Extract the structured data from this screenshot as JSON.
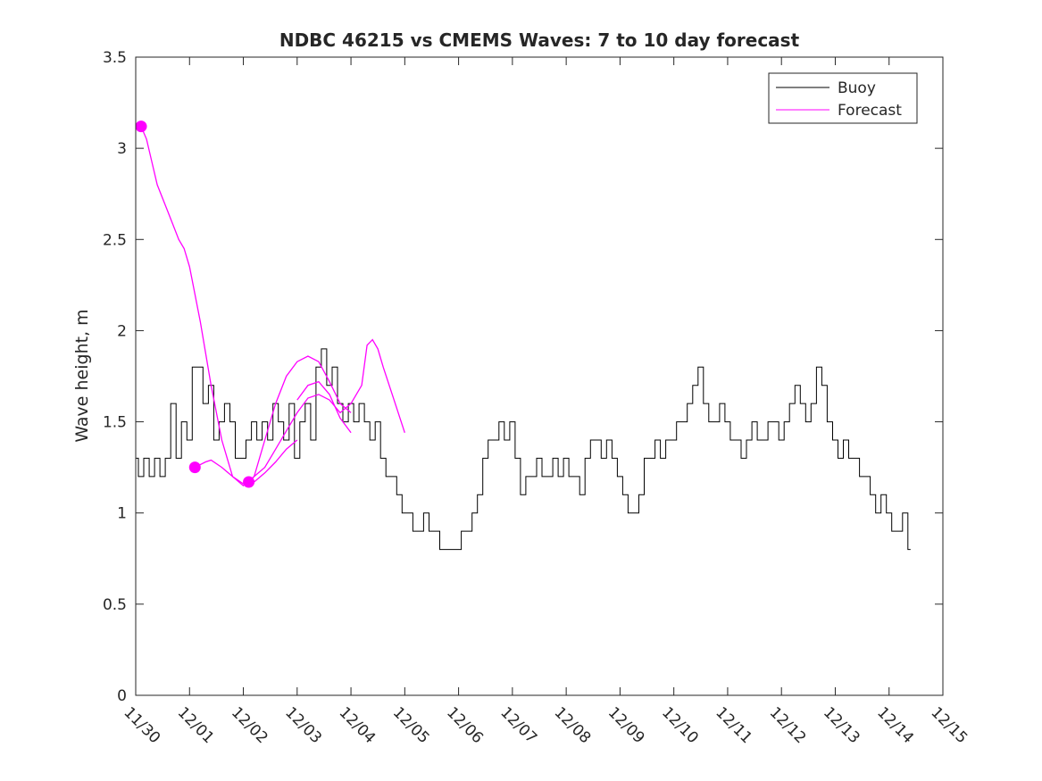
{
  "chart_data": {
    "type": "line",
    "title": "NDBC 46215 vs CMEMS Waves: 7 to 10 day forecast",
    "xlabel": "",
    "ylabel": "Wave height, m",
    "xlim": [
      0,
      15
    ],
    "ylim": [
      0,
      3.5
    ],
    "grid": false,
    "legend_position": "top-right",
    "x_ticks": [
      {
        "value": 0,
        "label": "11/30"
      },
      {
        "value": 1,
        "label": "12/01"
      },
      {
        "value": 2,
        "label": "12/02"
      },
      {
        "value": 3,
        "label": "12/03"
      },
      {
        "value": 4,
        "label": "12/04"
      },
      {
        "value": 5,
        "label": "12/05"
      },
      {
        "value": 6,
        "label": "12/06"
      },
      {
        "value": 7,
        "label": "12/07"
      },
      {
        "value": 8,
        "label": "12/08"
      },
      {
        "value": 9,
        "label": "12/09"
      },
      {
        "value": 10,
        "label": "12/10"
      },
      {
        "value": 11,
        "label": "12/11"
      },
      {
        "value": 12,
        "label": "12/12"
      },
      {
        "value": 13,
        "label": "12/13"
      },
      {
        "value": 14,
        "label": "12/14"
      },
      {
        "value": 15,
        "label": "12/15"
      }
    ],
    "y_ticks": [
      {
        "value": 0,
        "label": "0"
      },
      {
        "value": 0.5,
        "label": "0.5"
      },
      {
        "value": 1,
        "label": "1"
      },
      {
        "value": 1.5,
        "label": "1.5"
      },
      {
        "value": 2,
        "label": "2"
      },
      {
        "value": 2.5,
        "label": "2.5"
      },
      {
        "value": 3,
        "label": "3"
      },
      {
        "value": 3.5,
        "label": "3.5"
      }
    ],
    "series": [
      {
        "name": "Buoy",
        "color": "#000000",
        "x": [
          0.0,
          0.1,
          0.2,
          0.3,
          0.4,
          0.5,
          0.6,
          0.7,
          0.8,
          0.9,
          1.0,
          1.1,
          1.2,
          1.3,
          1.4,
          1.5,
          1.6,
          1.7,
          1.8,
          1.9,
          2.0,
          2.1,
          2.2,
          2.3,
          2.4,
          2.5,
          2.6,
          2.7,
          2.8,
          2.9,
          3.0,
          3.1,
          3.2,
          3.3,
          3.4,
          3.5,
          3.6,
          3.7,
          3.8,
          3.9,
          4.0,
          4.1,
          4.2,
          4.3,
          4.4,
          4.5,
          4.6,
          4.7,
          4.8,
          4.9,
          5.0,
          5.1,
          5.2,
          5.3,
          5.4,
          5.5,
          5.6,
          5.7,
          5.8,
          5.9,
          6.0,
          6.1,
          6.2,
          6.3,
          6.4,
          6.5,
          6.6,
          6.7,
          6.8,
          6.9,
          7.0,
          7.1,
          7.2,
          7.3,
          7.4,
          7.5,
          7.6,
          7.7,
          7.8,
          7.9,
          8.0,
          8.1,
          8.2,
          8.3,
          8.4,
          8.5,
          8.6,
          8.7,
          8.8,
          8.9,
          9.0,
          9.1,
          9.2,
          9.3,
          9.4,
          9.5,
          9.6,
          9.7,
          9.8,
          9.9,
          10.0,
          10.1,
          10.2,
          10.3,
          10.4,
          10.5,
          10.6,
          10.7,
          10.8,
          10.9,
          11.0,
          11.1,
          11.2,
          11.3,
          11.4,
          11.5,
          11.6,
          11.7,
          11.8,
          11.9,
          12.0,
          12.1,
          12.2,
          12.3,
          12.4,
          12.5,
          12.6,
          12.7,
          12.8,
          12.9,
          13.0,
          13.1,
          13.2,
          13.3,
          13.4,
          13.5,
          13.6,
          13.7,
          13.8,
          13.9,
          14.0,
          14.1,
          14.2,
          14.3,
          14.4
        ],
        "values": [
          1.3,
          1.2,
          1.3,
          1.2,
          1.3,
          1.2,
          1.3,
          1.6,
          1.3,
          1.5,
          1.4,
          1.8,
          1.8,
          1.6,
          1.7,
          1.4,
          1.5,
          1.6,
          1.5,
          1.3,
          1.3,
          1.4,
          1.5,
          1.4,
          1.5,
          1.4,
          1.6,
          1.5,
          1.4,
          1.6,
          1.3,
          1.5,
          1.6,
          1.4,
          1.8,
          1.9,
          1.7,
          1.8,
          1.6,
          1.5,
          1.6,
          1.5,
          1.6,
          1.5,
          1.4,
          1.5,
          1.3,
          1.2,
          1.2,
          1.1,
          1.0,
          1.0,
          0.9,
          0.9,
          1.0,
          0.9,
          0.9,
          0.8,
          0.8,
          0.8,
          0.8,
          0.9,
          0.9,
          1.0,
          1.1,
          1.3,
          1.4,
          1.4,
          1.5,
          1.4,
          1.5,
          1.3,
          1.1,
          1.2,
          1.2,
          1.3,
          1.2,
          1.2,
          1.3,
          1.2,
          1.3,
          1.2,
          1.2,
          1.1,
          1.3,
          1.4,
          1.4,
          1.3,
          1.4,
          1.3,
          1.2,
          1.1,
          1.0,
          1.0,
          1.1,
          1.3,
          1.3,
          1.4,
          1.3,
          1.4,
          1.4,
          1.5,
          1.5,
          1.6,
          1.7,
          1.8,
          1.6,
          1.5,
          1.5,
          1.6,
          1.5,
          1.4,
          1.4,
          1.3,
          1.4,
          1.5,
          1.4,
          1.4,
          1.5,
          1.5,
          1.4,
          1.5,
          1.6,
          1.7,
          1.6,
          1.5,
          1.6,
          1.8,
          1.7,
          1.5,
          1.4,
          1.3,
          1.4,
          1.3,
          1.3,
          1.2,
          1.2,
          1.1,
          1.0,
          1.1,
          1.0,
          0.9,
          0.9,
          1.0,
          0.8
        ]
      },
      {
        "name": "Forecast",
        "color": "#ff00ff",
        "runs": [
          {
            "x": [
              0.1,
              0.2,
              0.4,
              0.6,
              0.8,
              0.9,
              1.0,
              1.2,
              1.4,
              1.6,
              1.8,
              2.0,
              2.2,
              2.4,
              2.6,
              2.8,
              3.0,
              3.2,
              3.4,
              3.6,
              3.8,
              4.0
            ],
            "values": [
              3.12,
              3.05,
              2.8,
              2.65,
              2.5,
              2.45,
              2.35,
              2.05,
              1.7,
              1.4,
              1.2,
              1.15,
              1.2,
              1.4,
              1.6,
              1.75,
              1.83,
              1.86,
              1.83,
              1.72,
              1.6,
              1.55
            ],
            "marker_start": true
          },
          {
            "x": [
              1.1,
              1.3,
              1.4,
              1.6,
              1.8,
              2.0,
              2.2,
              2.4,
              2.6,
              2.8,
              3.0
            ],
            "values": [
              1.25,
              1.28,
              1.29,
              1.25,
              1.2,
              1.16,
              1.17,
              1.22,
              1.28,
              1.35,
              1.4
            ],
            "marker_start": true
          },
          {
            "x": [
              2.1,
              2.2,
              2.4,
              2.6,
              2.8,
              3.0,
              3.2,
              3.4,
              3.6,
              3.8,
              4.0,
              4.2,
              4.3,
              4.4,
              4.5,
              4.6,
              4.8,
              5.0
            ],
            "values": [
              1.17,
              1.2,
              1.25,
              1.35,
              1.45,
              1.55,
              1.63,
              1.65,
              1.62,
              1.55,
              1.6,
              1.7,
              1.92,
              1.95,
              1.9,
              1.8,
              1.62,
              1.44
            ],
            "marker_start": true
          },
          {
            "x": [
              3.0,
              3.2,
              3.4,
              3.6,
              3.8,
              4.0
            ],
            "values": [
              1.62,
              1.7,
              1.72,
              1.65,
              1.52,
              1.44
            ],
            "marker_start": false
          }
        ]
      }
    ],
    "legend": {
      "entries": [
        "Buoy",
        "Forecast"
      ]
    }
  }
}
